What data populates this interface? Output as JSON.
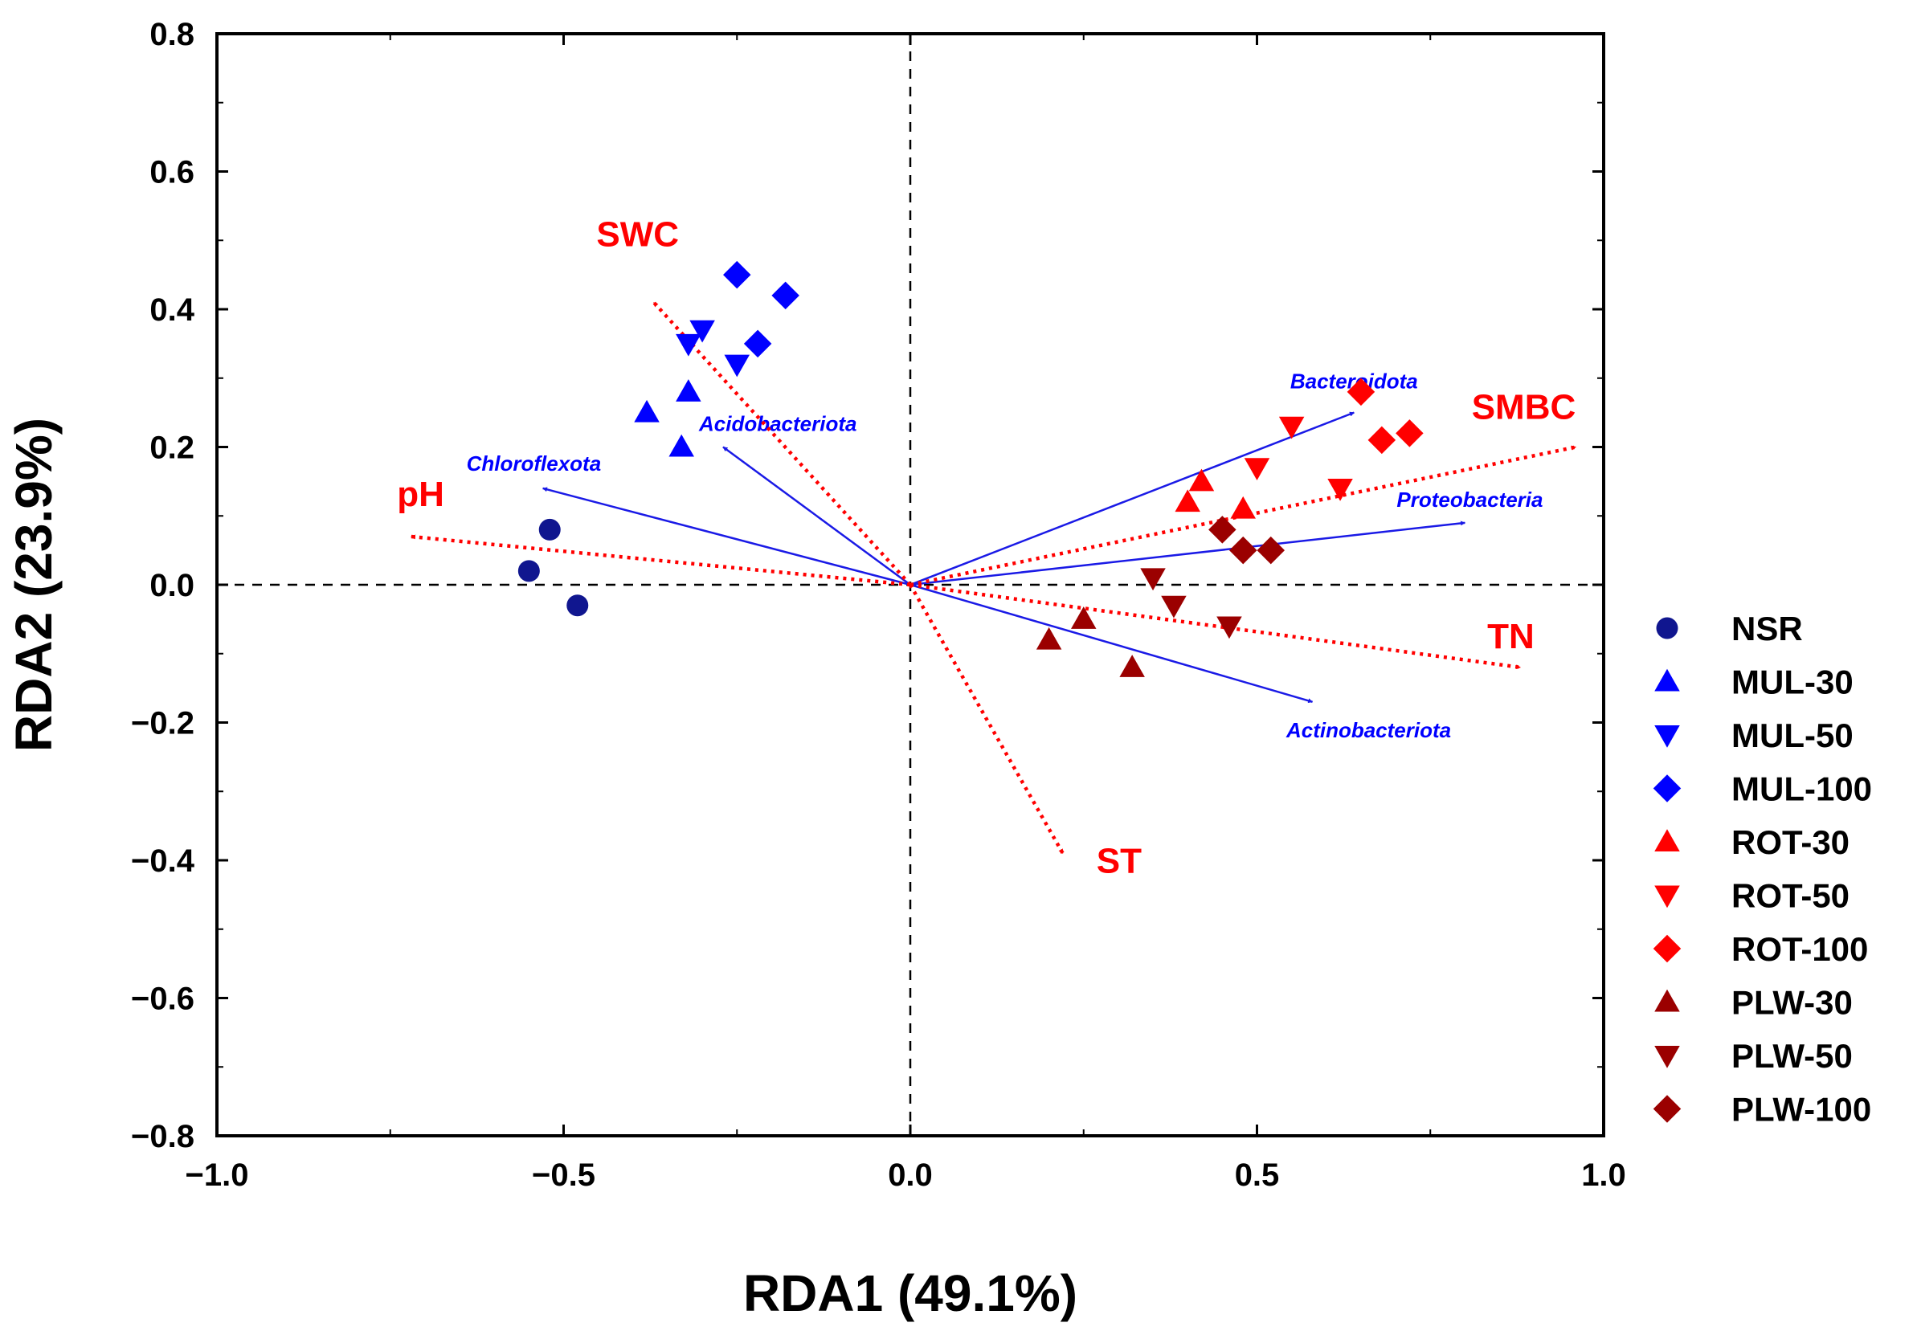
{
  "chart_data": {
    "type": "scatter",
    "subtype": "RDA biplot",
    "title": "",
    "xlabel": "RDA1 (49.1%)",
    "ylabel": "RDA2 (23.9%)",
    "xlim": [
      -1.0,
      1.0
    ],
    "ylim": [
      -0.8,
      0.8
    ],
    "x_ticks": [
      -1.0,
      -0.5,
      0.0,
      0.5,
      1.0
    ],
    "x_tick_labels": [
      "−1.0",
      "−0.5",
      "0.0",
      "0.5",
      "1.0"
    ],
    "y_ticks": [
      0.8,
      0.6,
      0.4,
      0.2,
      0.0,
      -0.2,
      -0.4,
      -0.6,
      -0.8
    ],
    "y_tick_labels": [
      "0.8",
      "0.6",
      "0.4",
      "0.2",
      "0.0",
      "−0.2",
      "−0.4",
      "−0.6",
      "−0.8"
    ],
    "grid": false,
    "reference_lines": "dashed lines at x = 0 and y = 0",
    "legend_position": "right",
    "colors": {
      "navy": "#10168f",
      "blue": "#0000ff",
      "red": "#ff0000",
      "darkred": "#9b0000",
      "arrow_taxa": "#1a1ae6",
      "arrow_env": "#ff0000"
    },
    "series": [
      {
        "name": "NSR",
        "marker": "circle",
        "color": "#10168f",
        "points": [
          [
            -0.52,
            0.08
          ],
          [
            -0.55,
            0.02
          ],
          [
            -0.48,
            -0.03
          ]
        ]
      },
      {
        "name": "MUL-30",
        "marker": "triangle-up",
        "color": "#0000ff",
        "points": [
          [
            -0.38,
            0.25
          ],
          [
            -0.32,
            0.28
          ],
          [
            -0.33,
            0.2
          ]
        ]
      },
      {
        "name": "MUL-50",
        "marker": "triangle-down",
        "color": "#0000ff",
        "points": [
          [
            -0.3,
            0.37
          ],
          [
            -0.32,
            0.35
          ],
          [
            -0.25,
            0.32
          ]
        ]
      },
      {
        "name": "MUL-100",
        "marker": "diamond",
        "color": "#0000ff",
        "points": [
          [
            -0.25,
            0.45
          ],
          [
            -0.18,
            0.42
          ],
          [
            -0.22,
            0.35
          ]
        ]
      },
      {
        "name": "ROT-30",
        "marker": "triangle-up",
        "color": "#ff0000",
        "points": [
          [
            0.42,
            0.15
          ],
          [
            0.4,
            0.12
          ],
          [
            0.48,
            0.11
          ]
        ]
      },
      {
        "name": "ROT-50",
        "marker": "triangle-down",
        "color": "#ff0000",
        "points": [
          [
            0.55,
            0.23
          ],
          [
            0.5,
            0.17
          ],
          [
            0.62,
            0.14
          ]
        ]
      },
      {
        "name": "ROT-100",
        "marker": "diamond",
        "color": "#ff0000",
        "points": [
          [
            0.65,
            0.28
          ],
          [
            0.68,
            0.21
          ],
          [
            0.72,
            0.22
          ]
        ]
      },
      {
        "name": "PLW-30",
        "marker": "triangle-up",
        "color": "#9b0000",
        "points": [
          [
            0.2,
            -0.08
          ],
          [
            0.25,
            -0.05
          ],
          [
            0.32,
            -0.12
          ]
        ]
      },
      {
        "name": "PLW-50",
        "marker": "triangle-down",
        "color": "#9b0000",
        "points": [
          [
            0.35,
            0.01
          ],
          [
            0.38,
            -0.03
          ],
          [
            0.46,
            -0.06
          ]
        ]
      },
      {
        "name": "PLW-100",
        "marker": "diamond",
        "color": "#9b0000",
        "points": [
          [
            0.45,
            0.08
          ],
          [
            0.48,
            0.05
          ],
          [
            0.52,
            0.05
          ]
        ]
      }
    ],
    "env_vectors": [
      {
        "label": "SWC",
        "x": -0.37,
        "y": 0.41
      },
      {
        "label": "SMBC",
        "x": 0.96,
        "y": 0.2
      },
      {
        "label": "pH",
        "x": -0.72,
        "y": 0.07
      },
      {
        "label": "TN",
        "x": 0.88,
        "y": -0.12
      },
      {
        "label": "ST",
        "x": 0.22,
        "y": -0.39
      }
    ],
    "taxa_vectors": [
      {
        "label": "Bacteroidota",
        "x": 0.64,
        "y": 0.25
      },
      {
        "label": "Acidobacteriota",
        "x": -0.27,
        "y": 0.2
      },
      {
        "label": "Chloroflexota",
        "x": -0.53,
        "y": 0.14
      },
      {
        "label": "Proteobacteria",
        "x": 0.8,
        "y": 0.09
      },
      {
        "label": "Actinobacteriota",
        "x": 0.58,
        "y": -0.17
      }
    ]
  }
}
